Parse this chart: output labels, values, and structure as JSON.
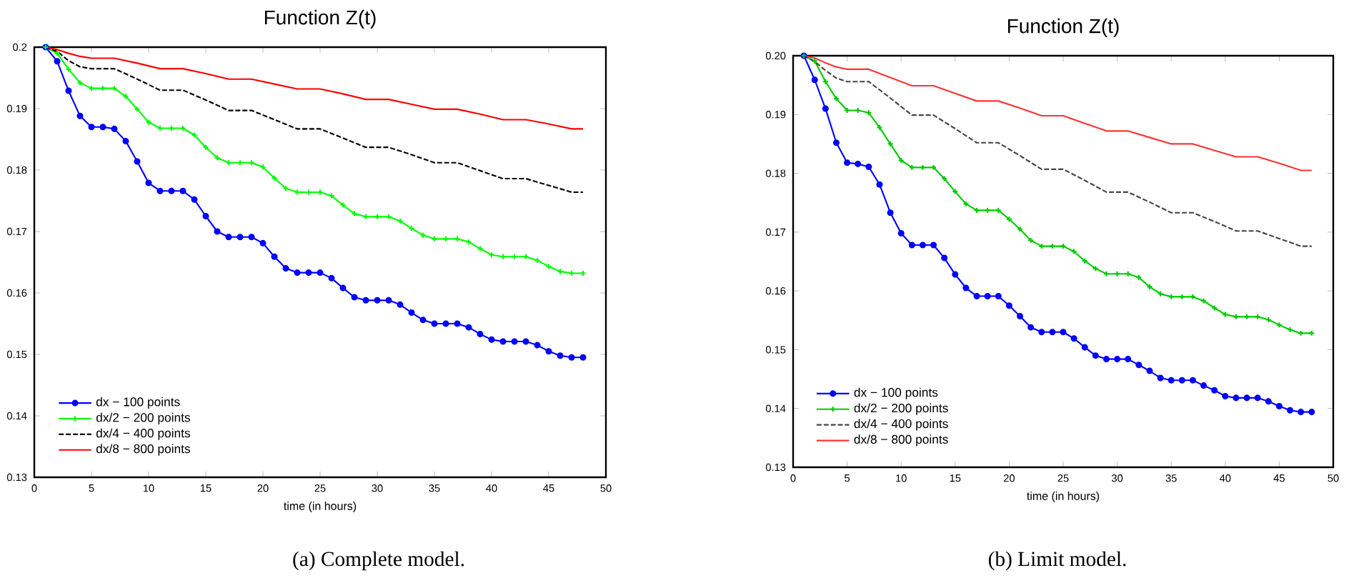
{
  "chart_data": [
    {
      "type": "line",
      "title": "Function Z(t)",
      "xlabel": "time (in hours)",
      "xlim": [
        0,
        50
      ],
      "ylim": [
        0.13,
        0.2
      ],
      "xticks": [
        0,
        5,
        10,
        15,
        20,
        25,
        30,
        35,
        40,
        45,
        50
      ],
      "yticks": [
        0.13,
        0.14,
        0.15,
        0.16,
        0.17,
        0.18,
        0.19,
        0.2
      ],
      "legend": "bottom left",
      "grid": false,
      "annotations": [
        "(a) Complete model."
      ],
      "series": [
        {
          "name": "dx − 100 points",
          "color": "#0000ff",
          "marker": "circle",
          "x": [
            1,
            2,
            3,
            4,
            5,
            6,
            7,
            8,
            9,
            10,
            11,
            12,
            13,
            14,
            15,
            16,
            17,
            18,
            19,
            20,
            21,
            22,
            23,
            24,
            25,
            26,
            27,
            28,
            29,
            30,
            31,
            32,
            33,
            34,
            35,
            36,
            37,
            38,
            39,
            40,
            41,
            42,
            43,
            44,
            45,
            46,
            47,
            48
          ],
          "values": [
            0.2,
            0.1977,
            0.1929,
            0.1888,
            0.187,
            0.187,
            0.1867,
            0.1847,
            0.1814,
            0.1779,
            0.1766,
            0.1766,
            0.1766,
            0.1752,
            0.1725,
            0.17,
            0.1691,
            0.1691,
            0.1691,
            0.1681,
            0.1659,
            0.164,
            0.1633,
            0.1633,
            0.1633,
            0.1624,
            0.1608,
            0.1593,
            0.1588,
            0.1588,
            0.1588,
            0.1581,
            0.1568,
            0.1556,
            0.155,
            0.155,
            0.155,
            0.1544,
            0.1533,
            0.1524,
            0.1521,
            0.1521,
            0.1521,
            0.1515,
            0.1505,
            0.1498,
            0.1495,
            0.1495
          ]
        },
        {
          "name": "dx/2 − 200 points",
          "color": "#00ff00",
          "marker": "cross",
          "x": [
            1,
            2,
            3,
            4,
            5,
            6,
            7,
            8,
            9,
            10,
            11,
            12,
            13,
            14,
            15,
            16,
            17,
            18,
            19,
            20,
            21,
            22,
            23,
            24,
            25,
            26,
            27,
            28,
            29,
            30,
            31,
            32,
            33,
            34,
            35,
            36,
            37,
            38,
            39,
            40,
            41,
            42,
            43,
            44,
            45,
            46,
            47,
            48
          ],
          "values": [
            0.2,
            0.199,
            0.1964,
            0.1942,
            0.1933,
            0.1933,
            0.1933,
            0.192,
            0.1899,
            0.1878,
            0.1868,
            0.1868,
            0.1868,
            0.1857,
            0.1837,
            0.182,
            0.1812,
            0.1812,
            0.1812,
            0.1805,
            0.1787,
            0.177,
            0.1764,
            0.1764,
            0.1764,
            0.1758,
            0.1743,
            0.1729,
            0.1724,
            0.1724,
            0.1724,
            0.1717,
            0.1705,
            0.1694,
            0.1688,
            0.1688,
            0.1688,
            0.1683,
            0.1672,
            0.1662,
            0.1659,
            0.1659,
            0.1659,
            0.1653,
            0.1643,
            0.1635,
            0.1632,
            0.1632
          ]
        },
        {
          "name": "dx/4 − 400 points",
          "color": "#000000",
          "line_style": "dashed",
          "x": [
            1,
            2,
            3,
            4,
            5,
            7,
            9,
            11,
            13,
            15,
            17,
            19,
            21,
            23,
            25,
            27,
            29,
            31,
            33,
            35,
            37,
            39,
            41,
            43,
            45,
            47,
            48
          ],
          "values": [
            0.2,
            0.1993,
            0.1978,
            0.1968,
            0.1965,
            0.1965,
            0.1948,
            0.193,
            0.193,
            0.1914,
            0.1897,
            0.1897,
            0.1882,
            0.1867,
            0.1867,
            0.1852,
            0.1837,
            0.1837,
            0.1825,
            0.1812,
            0.1812,
            0.1799,
            0.1786,
            0.1786,
            0.1775,
            0.1764,
            0.1764
          ]
        },
        {
          "name": "dx/8 − 800 points",
          "color": "#ff0000",
          "x": [
            1,
            2,
            3,
            4,
            5,
            7,
            9,
            11,
            13,
            15,
            17,
            19,
            21,
            23,
            25,
            27,
            29,
            31,
            33,
            35,
            37,
            39,
            41,
            43,
            45,
            47,
            48
          ],
          "values": [
            0.2,
            0.1996,
            0.199,
            0.1985,
            0.1982,
            0.1982,
            0.1974,
            0.1965,
            0.1965,
            0.1957,
            0.1948,
            0.1948,
            0.194,
            0.1932,
            0.1932,
            0.1924,
            0.1915,
            0.1915,
            0.1907,
            0.1899,
            0.1899,
            0.1891,
            0.1882,
            0.1882,
            0.1875,
            0.1867,
            0.1867
          ]
        }
      ]
    },
    {
      "type": "line",
      "title": "Function Z(t)",
      "xlabel": "time (in hours)",
      "xlim": [
        0,
        50
      ],
      "ylim": [
        0.13,
        0.2
      ],
      "xticks": [
        0,
        5,
        10,
        15,
        20,
        25,
        30,
        35,
        40,
        45,
        50
      ],
      "yticks": [
        0.13,
        0.14,
        0.15,
        0.16,
        0.17,
        0.18,
        0.19,
        {
          "value": 0.2,
          "label": "0.20"
        }
      ],
      "legend": "bottom left",
      "grid": false,
      "annotations": [
        "(b) Limit model."
      ],
      "series": [
        {
          "name": "dx − 100 points",
          "color": "#0000ff",
          "marker": "circle",
          "x": [
            1,
            2,
            3,
            4,
            5,
            6,
            7,
            8,
            9,
            10,
            11,
            12,
            13,
            14,
            15,
            16,
            17,
            18,
            19,
            20,
            21,
            22,
            23,
            24,
            25,
            26,
            27,
            28,
            29,
            30,
            31,
            32,
            33,
            34,
            35,
            36,
            37,
            38,
            39,
            40,
            41,
            42,
            43,
            44,
            45,
            46,
            47,
            48
          ],
          "values": [
            0.2,
            0.1959,
            0.191,
            0.1852,
            0.1818,
            0.1816,
            0.1811,
            0.1781,
            0.1733,
            0.1698,
            0.1678,
            0.1678,
            0.1678,
            0.1656,
            0.1628,
            0.1605,
            0.1591,
            0.1591,
            0.1591,
            0.1575,
            0.1557,
            0.1538,
            0.153,
            0.153,
            0.153,
            0.1519,
            0.1504,
            0.149,
            0.1484,
            0.1484,
            0.1484,
            0.1474,
            0.1464,
            0.1452,
            0.1448,
            0.1448,
            0.1448,
            0.1439,
            0.1431,
            0.1421,
            0.1418,
            0.1418,
            0.1418,
            0.1412,
            0.1404,
            0.1397,
            0.1394,
            0.1394
          ]
        },
        {
          "name": "dx/2 − 200 points",
          "color": "#00cc00",
          "marker": "cross",
          "x": [
            1,
            2,
            3,
            4,
            5,
            6,
            7,
            8,
            9,
            10,
            11,
            12,
            13,
            14,
            15,
            16,
            17,
            18,
            19,
            20,
            21,
            22,
            23,
            24,
            25,
            26,
            27,
            28,
            29,
            30,
            31,
            32,
            33,
            34,
            35,
            36,
            37,
            38,
            39,
            40,
            41,
            42,
            43,
            44,
            45,
            46,
            47,
            48
          ],
          "values": [
            0.2,
            0.1991,
            0.1956,
            0.1927,
            0.1907,
            0.1907,
            0.1903,
            0.1878,
            0.185,
            0.1822,
            0.181,
            0.181,
            0.181,
            0.1791,
            0.1769,
            0.1748,
            0.1737,
            0.1737,
            0.1737,
            0.1722,
            0.1705,
            0.1686,
            0.1676,
            0.1676,
            0.1676,
            0.1667,
            0.1651,
            0.1638,
            0.1629,
            0.1629,
            0.1629,
            0.1623,
            0.1607,
            0.1595,
            0.159,
            0.159,
            0.159,
            0.1583,
            0.1571,
            0.156,
            0.1556,
            0.1556,
            0.1556,
            0.1551,
            0.1542,
            0.1534,
            0.1528,
            0.1528
          ]
        },
        {
          "name": "dx/4 − 400 points",
          "color": "#444444",
          "line_style": "dashed",
          "x": [
            1,
            2,
            3,
            4,
            5,
            7,
            9,
            11,
            13,
            15,
            17,
            19,
            21,
            23,
            25,
            27,
            29,
            31,
            33,
            35,
            37,
            39,
            41,
            43,
            45,
            47,
            48
          ],
          "values": [
            0.2,
            0.199,
            0.1975,
            0.1962,
            0.1956,
            0.1956,
            0.1928,
            0.1899,
            0.1899,
            0.1876,
            0.1852,
            0.1852,
            0.183,
            0.1807,
            0.1807,
            0.1788,
            0.1768,
            0.1768,
            0.1751,
            0.1733,
            0.1733,
            0.1718,
            0.1702,
            0.1702,
            0.1689,
            0.1676,
            0.1676
          ]
        },
        {
          "name": "dx/8 − 800 points",
          "color": "#ff3333",
          "x": [
            1,
            2,
            3,
            4,
            5,
            7,
            9,
            11,
            13,
            15,
            17,
            19,
            21,
            23,
            25,
            27,
            29,
            31,
            33,
            35,
            37,
            39,
            41,
            43,
            45,
            47,
            48
          ],
          "values": [
            0.2,
            0.1996,
            0.1988,
            0.1981,
            0.1977,
            0.1977,
            0.1963,
            0.1949,
            0.1949,
            0.1936,
            0.1923,
            0.1923,
            0.1911,
            0.1898,
            0.1898,
            0.1885,
            0.1872,
            0.1872,
            0.1861,
            0.185,
            0.185,
            0.1839,
            0.1828,
            0.1828,
            0.1817,
            0.1805,
            0.1805
          ]
        }
      ]
    }
  ]
}
